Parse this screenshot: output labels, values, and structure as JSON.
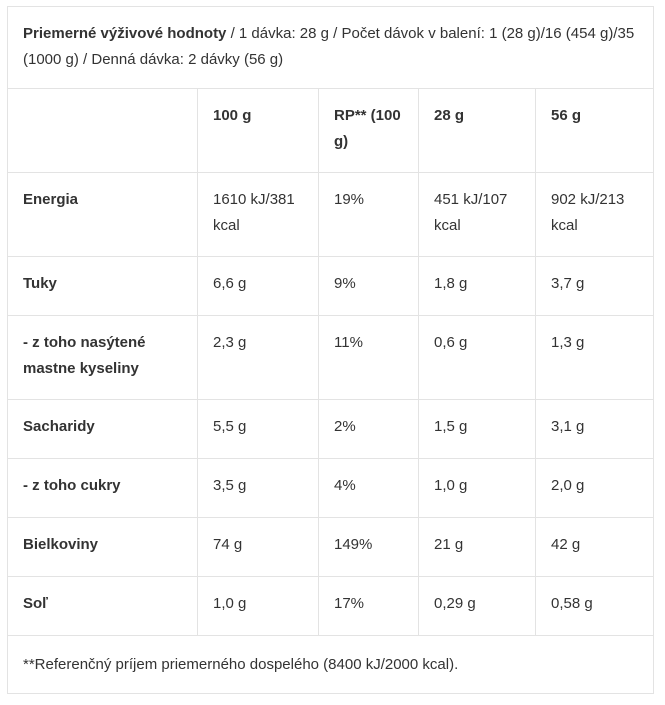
{
  "header": {
    "bold_lead": "Priemerné výživové hodnoty",
    "rest": " / 1 dávka: 28 g / Počet dávok v balení: 1 (28 g)/16 (454 g)/35 (1000 g) / Denná dávka: 2 dávky (56 g)"
  },
  "columns": [
    "100 g",
    "RP** (100 g)",
    "28 g",
    "56 g"
  ],
  "rows": [
    {
      "label": "Energia",
      "values": [
        "1610 kJ/381 kcal",
        "19%",
        "451 kJ/107 kcal",
        "902 kJ/213 kcal"
      ]
    },
    {
      "label": "Tuky",
      "values": [
        "6,6 g",
        "9%",
        "1,8 g",
        "3,7 g"
      ]
    },
    {
      "label": "- z toho nasýtené mastne kyseliny",
      "values": [
        "2,3 g",
        "11%",
        "0,6 g",
        "1,3 g"
      ]
    },
    {
      "label": "Sacharidy",
      "values": [
        "5,5 g",
        "2%",
        "1,5 g",
        "3,1 g"
      ]
    },
    {
      "label": "- z toho cukry",
      "values": [
        "3,5 g",
        "4%",
        "1,0 g",
        "2,0 g"
      ]
    },
    {
      "label": "Bielkoviny",
      "values": [
        "74 g",
        "149%",
        "21 g",
        "42 g"
      ]
    },
    {
      "label": "Soľ",
      "values": [
        "1,0 g",
        "17%",
        "0,29 g",
        "0,58 g"
      ]
    }
  ],
  "footer": "**Referenčný príjem priemerného dospelého (8400 kJ/2000 kcal)."
}
